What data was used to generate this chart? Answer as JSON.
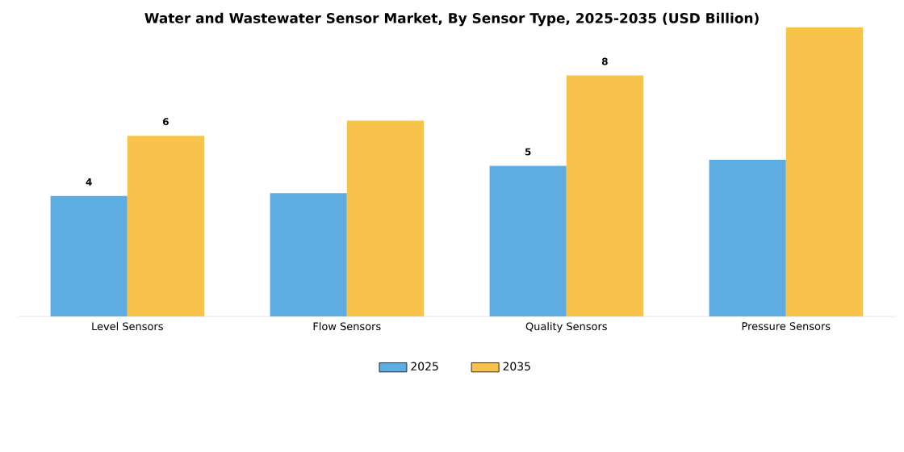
{
  "chart_data": {
    "type": "bar",
    "title": "Water and Wastewater Sensor Market, By Sensor Type, 2025-2035 (USD Billion)",
    "categories": [
      "Level Sensors",
      "Flow Sensors",
      "Quality Sensors",
      "Pressure Sensors"
    ],
    "series": [
      {
        "name": "2025",
        "color": "#5dade2",
        "values": [
          4,
          4.1,
          5,
          5.2
        ],
        "value_labels": [
          "4",
          null,
          "5",
          null
        ]
      },
      {
        "name": "2035",
        "color": "#f7c34b",
        "values": [
          6,
          6.5,
          8,
          9.6
        ],
        "value_labels": [
          "6",
          null,
          "8",
          null
        ]
      }
    ],
    "legend": "bottom"
  }
}
